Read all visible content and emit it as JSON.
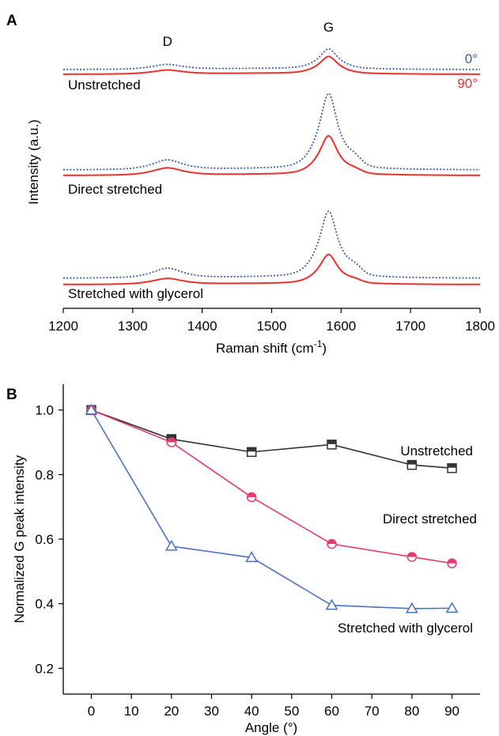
{
  "chart_data": [
    {
      "panel": "A",
      "type": "line",
      "xlabel": "Raman shift (cm",
      "xlabel_sup": "-1",
      "xlabel_close": ")",
      "ylabel": "Intensity (a.u.)",
      "xlim": [
        1200,
        1800
      ],
      "xticks": [
        1200,
        1300,
        1400,
        1500,
        1600,
        1700,
        1800
      ],
      "peak_labels": [
        {
          "text": "D",
          "x": 1350
        },
        {
          "text": "G",
          "x": 1582
        }
      ],
      "angle_legend": [
        {
          "text": "0°",
          "color": "#3a5cb0",
          "style": "dotted"
        },
        {
          "text": "90°",
          "color": "#e8322e",
          "style": "solid"
        }
      ],
      "samples": [
        {
          "name": "Unstretched",
          "trace_0deg": {
            "baseline": 0.05,
            "D_height": 0.1,
            "G_height": 0.42,
            "shoulder": 0.0
          },
          "trace_90deg": {
            "baseline": 0.0,
            "D_height": 0.08,
            "G_height": 0.36,
            "shoulder": 0.0
          }
        },
        {
          "name": "Direct stretched",
          "trace_0deg": {
            "baseline": 0.05,
            "D_height": 0.2,
            "G_height": 1.6,
            "shoulder": 0.14
          },
          "trace_90deg": {
            "baseline": 0.0,
            "D_height": 0.15,
            "G_height": 0.82,
            "shoulder": 0.06
          }
        },
        {
          "name": "Stretched with glycerol",
          "trace_0deg": {
            "baseline": 0.04,
            "D_height": 0.2,
            "G_height": 1.4,
            "shoulder": 0.14
          },
          "trace_90deg": {
            "baseline": 0.0,
            "D_height": 0.12,
            "G_height": 0.62,
            "shoulder": 0.05
          }
        }
      ],
      "colors": {
        "deg0": "#3a5cb0",
        "deg90": "#e8322e"
      }
    },
    {
      "panel": "B",
      "type": "line",
      "xlabel": "Angle (°)",
      "ylabel": "Normalized G peak intensity",
      "xlim": [
        -7,
        97
      ],
      "ylim": [
        0.12,
        1.08
      ],
      "xticks": [
        0,
        10,
        20,
        30,
        40,
        50,
        60,
        70,
        80,
        90
      ],
      "yticks": [
        "0.2",
        "0.4",
        "0.6",
        "0.8",
        "1.0"
      ],
      "x": [
        0,
        20,
        40,
        60,
        80,
        90
      ],
      "series": [
        {
          "name": "Unstretched",
          "marker": "square",
          "color": "#333333",
          "values": [
            1.0,
            0.91,
            0.87,
            0.893,
            0.83,
            0.82
          ]
        },
        {
          "name": "Direct stretched",
          "marker": "circle",
          "color": "#e63a6e",
          "values": [
            1.0,
            0.9,
            0.73,
            0.585,
            0.545,
            0.525
          ]
        },
        {
          "name": "Stretched with glycerol",
          "marker": "triangle",
          "color": "#4a72c4",
          "values": [
            1.0,
            0.578,
            0.543,
            0.395,
            0.385,
            0.386
          ]
        }
      ]
    }
  ]
}
